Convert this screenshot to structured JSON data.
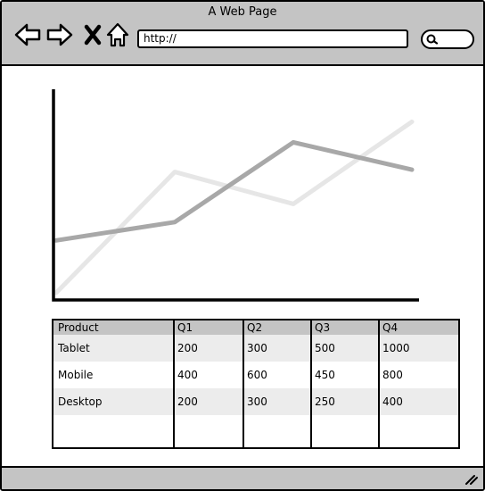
{
  "window": {
    "title": "A Web Page"
  },
  "toolbar": {
    "back_icon": "back-arrow-icon",
    "forward_icon": "forward-arrow-icon",
    "stop_icon": "close-icon",
    "home_icon": "home-icon",
    "url": "http://",
    "search_icon": "search-icon"
  },
  "chart_data": {
    "type": "line",
    "x": [
      1,
      2,
      3,
      4
    ],
    "series": [
      {
        "values": [
          0,
          5.3,
          3.9,
          7.5
        ],
        "color": "#e6e6e6"
      },
      {
        "values": [
          2.3,
          3.1,
          6.6,
          5.4
        ],
        "color": "#a8a8a8"
      }
    ],
    "ylim": [
      0,
      8.3
    ],
    "grid": false,
    "legend": "none"
  },
  "table": {
    "headers": [
      "Product",
      "Q1",
      "Q2",
      "Q3",
      "Q4"
    ],
    "rows": [
      [
        "Tablet",
        "200",
        "300",
        "500",
        "1000"
      ],
      [
        "Mobile",
        "400",
        "600",
        "450",
        "800"
      ],
      [
        "Desktop",
        "200",
        "300",
        "250",
        "400"
      ]
    ]
  },
  "colors": {
    "chrome": "#c4c4c4",
    "row_stripe": "#ececec"
  },
  "statusbar": {
    "resize_icon": "resize-grip-icon"
  }
}
